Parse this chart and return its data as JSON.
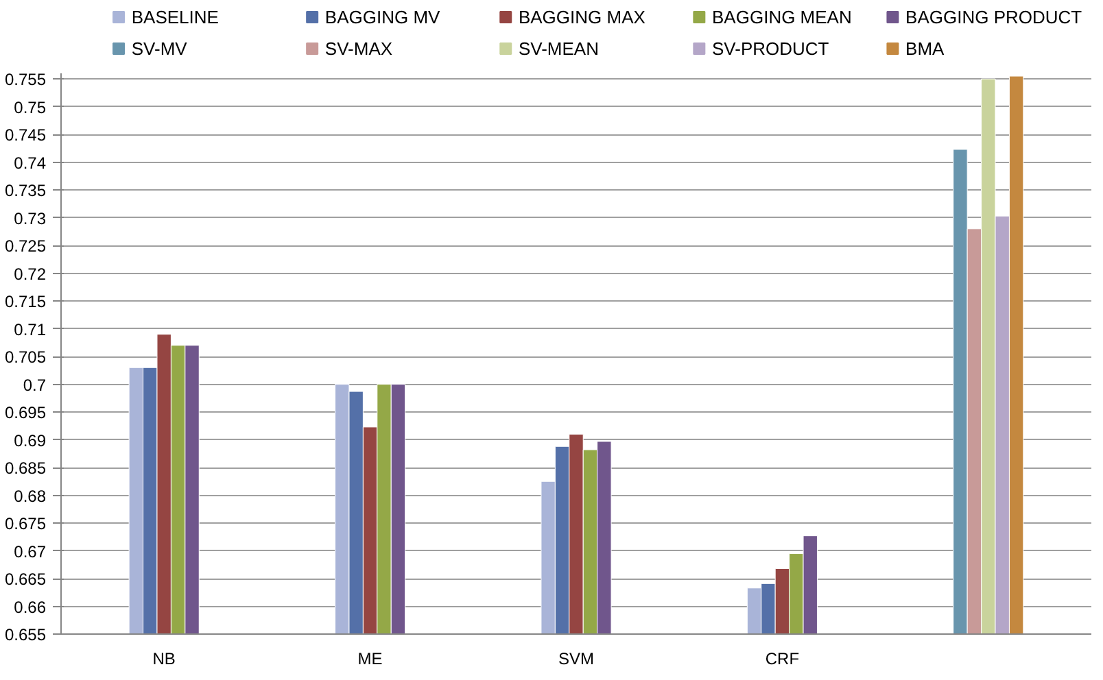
{
  "chart_data": {
    "type": "bar",
    "categories": [
      "NB",
      "ME",
      "SVM",
      "CRF",
      null
    ],
    "series": [
      {
        "name": "BASELINE",
        "color": "#a9b4d8",
        "values": [
          0.703,
          0.7,
          0.6825,
          0.6633,
          null
        ]
      },
      {
        "name": "BAGGING MV",
        "color": "#5470a8",
        "values": [
          0.703,
          0.6987,
          0.6888,
          0.6641,
          null
        ]
      },
      {
        "name": "BAGGING MAX",
        "color": "#954542",
        "values": [
          0.709,
          0.6923,
          0.691,
          0.6668,
          null
        ]
      },
      {
        "name": "BAGGING MEAN",
        "color": "#94a847",
        "values": [
          0.707,
          0.7,
          0.6882,
          0.6695,
          null
        ]
      },
      {
        "name": "BAGGING PRODUCT",
        "color": "#70568c",
        "values": [
          0.707,
          0.7,
          0.6897,
          0.6727,
          null
        ]
      },
      {
        "name": "SV-MV",
        "color": "#6895ad",
        "values": [
          null,
          null,
          null,
          null,
          0.7423
        ]
      },
      {
        "name": "SV-MAX",
        "color": "#c89a98",
        "values": [
          null,
          null,
          null,
          null,
          0.728
        ]
      },
      {
        "name": "SV-MEAN",
        "color": "#c9d39c",
        "values": [
          null,
          null,
          null,
          null,
          0.755
        ]
      },
      {
        "name": "SV-PRODUCT",
        "color": "#b4a6c8",
        "values": [
          null,
          null,
          null,
          null,
          0.7303
        ]
      },
      {
        "name": "BMA",
        "color": "#c4883f",
        "values": [
          null,
          null,
          null,
          null,
          0.7555
        ]
      }
    ],
    "ylim": [
      0.655,
      0.756
    ],
    "yticks": [
      0.655,
      0.66,
      0.665,
      0.67,
      0.675,
      0.68,
      0.685,
      0.69,
      0.695,
      0.7,
      0.705,
      0.71,
      0.715,
      0.72,
      0.725,
      0.73,
      0.735,
      0.74,
      0.745,
      0.75,
      0.755
    ],
    "grid": "y",
    "legend": "top"
  }
}
